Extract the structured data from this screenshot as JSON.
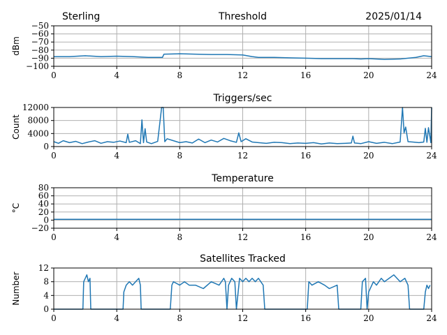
{
  "header": {
    "station": "Sterling",
    "date": "2025/01/14"
  },
  "colors": {
    "line": "#1f77b4",
    "grid": "#b0b0b0"
  },
  "chart_data": [
    {
      "type": "line",
      "title": "Threshold",
      "ylabel": "dBm",
      "xlabel": "",
      "xlim": [
        0,
        24
      ],
      "ylim": [
        -100,
        -50
      ],
      "xticks": [
        0,
        4,
        8,
        12,
        16,
        20,
        24
      ],
      "yticks": [
        -100,
        -90,
        -80,
        -70,
        -60,
        -50
      ],
      "grid": true,
      "series": [
        {
          "x": [
            0,
            1,
            2,
            2.5,
            3,
            4,
            5,
            6,
            6.9,
            7,
            8,
            9,
            10,
            11,
            12,
            12.6,
            13,
            14,
            15,
            16,
            17,
            18,
            19,
            19.5,
            20,
            21,
            22,
            22.5,
            23,
            23.5,
            24
          ],
          "y": [
            -88,
            -88,
            -87,
            -87.5,
            -88,
            -87.5,
            -88,
            -89,
            -89,
            -85,
            -84.5,
            -85,
            -85.5,
            -85.5,
            -86,
            -88,
            -89,
            -89,
            -89.5,
            -90,
            -90.5,
            -90.5,
            -90.5,
            -91,
            -90.5,
            -91.5,
            -91,
            -90,
            -89,
            -87,
            -88
          ]
        }
      ]
    },
    {
      "type": "line",
      "title": "Triggers/sec",
      "ylabel": "Count",
      "xlabel": "",
      "xlim": [
        0,
        24
      ],
      "ylim": [
        0,
        12000
      ],
      "xticks": [
        0,
        4,
        8,
        12,
        16,
        20,
        24
      ],
      "yticks": [
        0,
        4000,
        8000,
        12000
      ],
      "grid": true,
      "series": [
        {
          "x": [
            0,
            0.3,
            0.6,
            1,
            1.4,
            1.8,
            2.2,
            2.6,
            3,
            3.4,
            3.8,
            4.2,
            4.6,
            4.7,
            4.8,
            5.2,
            5.5,
            5.6,
            5.7,
            5.8,
            5.9,
            6.2,
            6.6,
            6.85,
            6.95,
            7.05,
            7.2,
            7.6,
            8,
            8.4,
            8.8,
            9.2,
            9.6,
            10,
            10.4,
            10.8,
            11.2,
            11.6,
            11.75,
            11.9,
            12.2,
            12.6,
            13,
            13.5,
            14,
            14.5,
            15,
            15.5,
            16,
            16.5,
            17,
            17.5,
            18,
            18.5,
            18.9,
            19,
            19.1,
            19.5,
            20,
            20.5,
            21,
            21.5,
            22,
            22.15,
            22.25,
            22.35,
            22.5,
            22.8,
            23.2,
            23.5,
            23.6,
            23.7,
            23.8,
            23.95,
            24
          ],
          "y": [
            1500,
            1000,
            1800,
            1200,
            1600,
            900,
            1400,
            1800,
            1000,
            1500,
            1300,
            1700,
            1200,
            3800,
            1300,
            1800,
            900,
            8200,
            1200,
            5500,
            1400,
            900,
            1600,
            12000,
            12000,
            1500,
            2400,
            1800,
            1200,
            1500,
            1100,
            2300,
            1200,
            2000,
            1400,
            2500,
            1800,
            1300,
            4200,
            1500,
            2400,
            1400,
            1200,
            1000,
            1300,
            1200,
            900,
            1100,
            1000,
            1200,
            800,
            1100,
            900,
            1000,
            1100,
            3200,
            1100,
            900,
            1500,
            1000,
            1300,
            900,
            1400,
            12000,
            4200,
            6000,
            1500,
            1400,
            1200,
            1400,
            5600,
            1300,
            5800,
            1200,
            12000
          ]
        }
      ]
    },
    {
      "type": "line",
      "title": "Temperature",
      "ylabel": "°C",
      "xlabel": "",
      "xlim": [
        0,
        24
      ],
      "ylim": [
        -20,
        80
      ],
      "xticks": [
        0,
        4,
        8,
        12,
        16,
        20,
        24
      ],
      "yticks": [
        -20,
        0,
        20,
        40,
        60,
        80
      ],
      "grid": true,
      "series": [
        {
          "x": [
            0,
            24
          ],
          "y": [
            2,
            2
          ]
        }
      ]
    },
    {
      "type": "line",
      "title": "Satellites Tracked",
      "ylabel": "Number",
      "xlabel": "",
      "xlim": [
        0,
        24
      ],
      "ylim": [
        0,
        12
      ],
      "xticks": [
        0,
        4,
        8,
        12,
        16,
        20,
        24
      ],
      "yticks": [
        0,
        4,
        8,
        12
      ],
      "grid": true,
      "series": [
        {
          "x": [
            0,
            1.85,
            1.9,
            2.0,
            2.1,
            2.2,
            2.3,
            2.35,
            4.4,
            4.45,
            4.6,
            4.8,
            5.0,
            5.2,
            5.4,
            5.5,
            5.55,
            7.4,
            7.5,
            7.6,
            8.0,
            8.3,
            8.6,
            9.0,
            9.5,
            10.0,
            10.5,
            10.8,
            10.9,
            11.0,
            11.1,
            11.3,
            11.5,
            11.6,
            11.8,
            12.0,
            12.2,
            12.4,
            12.6,
            12.8,
            13.0,
            13.3,
            13.4,
            16.1,
            16.2,
            16.4,
            16.8,
            17.2,
            17.5,
            18.0,
            18.1,
            19.5,
            19.6,
            19.8,
            19.9,
            20.0,
            20.3,
            20.5,
            20.8,
            21.0,
            21.3,
            21.6,
            21.8,
            22.0,
            22.3,
            22.5,
            22.6,
            23.5,
            23.6,
            23.7,
            23.8,
            23.9
          ],
          "y": [
            0,
            0,
            8,
            9,
            10,
            8,
            9,
            0,
            0,
            5,
            7,
            8,
            7,
            8,
            9,
            7,
            0,
            0,
            7,
            8,
            7,
            8,
            7,
            7,
            6,
            8,
            7,
            9,
            8,
            0,
            7,
            9,
            8,
            0,
            9,
            8,
            9,
            8,
            9,
            8,
            9,
            7,
            0,
            0,
            8,
            7,
            8,
            7,
            6,
            7,
            0,
            0,
            8,
            9,
            0,
            5,
            8,
            7,
            9,
            8,
            9,
            10,
            9,
            8,
            9,
            7,
            0,
            0,
            5,
            7,
            6,
            7
          ]
        }
      ]
    }
  ]
}
